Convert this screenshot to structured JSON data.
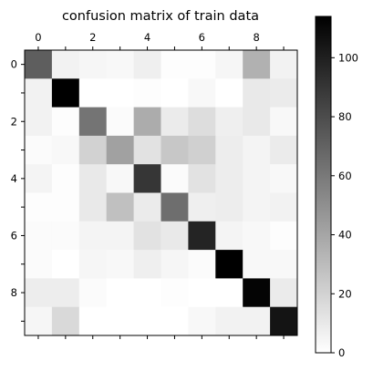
{
  "chart_data": {
    "type": "heatmap",
    "title": "confusion matrix of train data",
    "colormap": "gray_r",
    "vmin": 0,
    "vmax": 114,
    "x_ticks": [
      0,
      2,
      4,
      6,
      8
    ],
    "y_ticks": [
      0,
      2,
      4,
      6,
      8
    ],
    "x_tick_position": "top",
    "colorbar_ticks": [
      0,
      20,
      40,
      60,
      80,
      100
    ],
    "colorbar_position": "right",
    "grid": false,
    "matrix": [
      [
        72,
        6,
        4,
        3,
        7,
        1,
        1,
        4,
        35,
        6
      ],
      [
        6,
        114,
        0,
        0,
        1,
        0,
        3,
        0,
        10,
        9
      ],
      [
        6,
        1,
        62,
        2,
        37,
        9,
        15,
        7,
        10,
        3
      ],
      [
        2,
        3,
        20,
        42,
        13,
        25,
        21,
        8,
        5,
        9
      ],
      [
        5,
        1,
        10,
        3,
        90,
        2,
        13,
        8,
        5,
        3
      ],
      [
        1,
        1,
        10,
        28,
        9,
        65,
        7,
        8,
        5,
        6
      ],
      [
        2,
        2,
        5,
        5,
        13,
        10,
        98,
        5,
        3,
        1
      ],
      [
        2,
        0,
        4,
        3,
        7,
        4,
        2,
        114,
        3,
        3
      ],
      [
        8,
        8,
        2,
        0,
        0,
        1,
        0,
        0,
        112,
        9
      ],
      [
        4,
        17,
        0,
        0,
        0,
        0,
        3,
        6,
        6,
        105
      ]
    ]
  }
}
